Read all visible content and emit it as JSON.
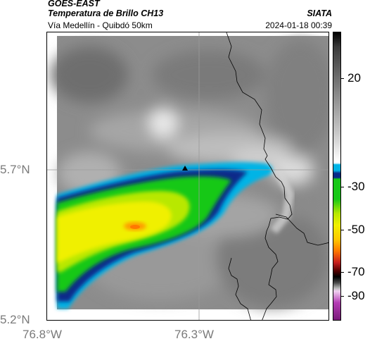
{
  "header": {
    "product": "GOES-EAST",
    "subtitle": "Temperatura de Brillo CH13",
    "organization": "SIATA",
    "location": "Vía Medellín - Quibdó 50km",
    "datetime": "2024-01-18 00:39"
  },
  "axes": {
    "latitude_labels": [
      "5.7°N",
      "5.2°N"
    ],
    "longitude_labels": [
      "76.8°W",
      "76.3°W"
    ]
  },
  "colorbar": {
    "ticks": [
      "20",
      "-30",
      "-50",
      "-70",
      "-90"
    ],
    "colors": {
      "white": "#ffffff",
      "cyan": "#00b4e6",
      "navy": "#0a2a8a",
      "green": "#18c818",
      "yellow": "#f0f000",
      "orange": "#ff7800",
      "red": "#c81e1e",
      "black": "#000000",
      "magenta": "#b43cb4"
    }
  },
  "map": {
    "background_color": "#8c8c8c",
    "grid": true,
    "marker": "triangle-marker"
  }
}
